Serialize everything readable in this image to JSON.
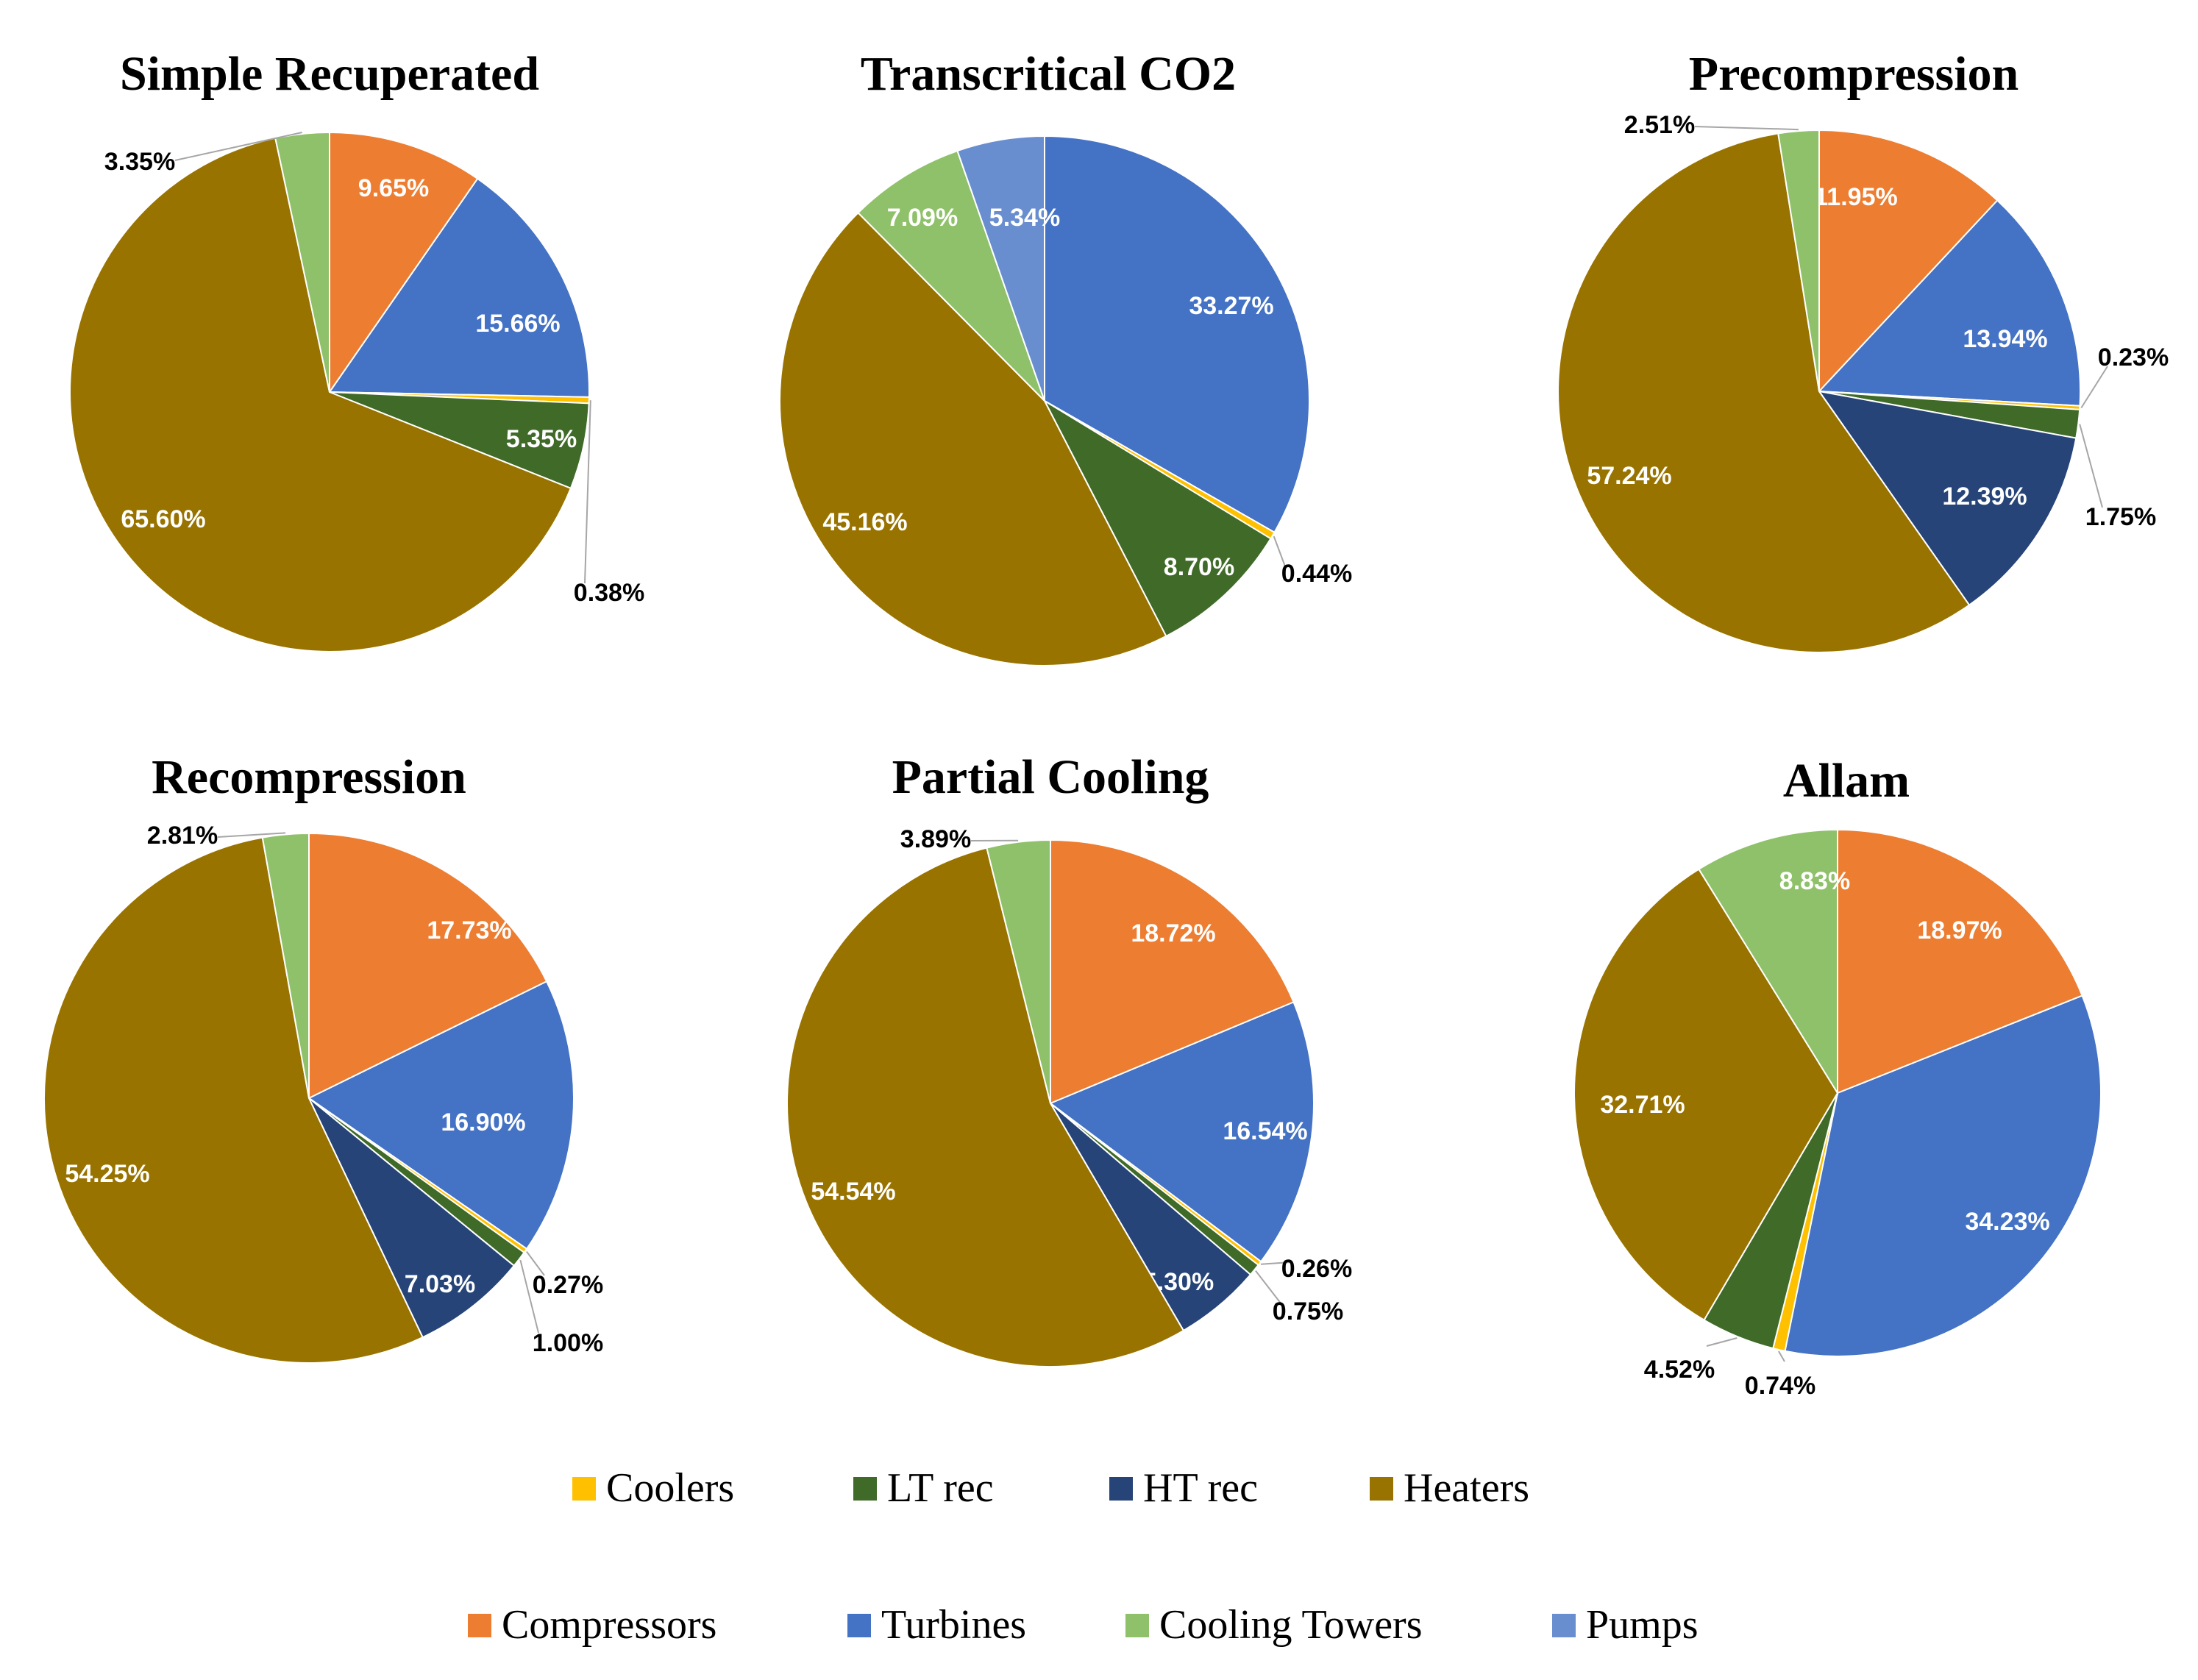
{
  "categories": [
    "Coolers",
    "LT rec",
    "HT rec",
    "Heaters",
    "Compressors",
    "Turbines",
    "Cooling Towers",
    "Pumps"
  ],
  "colors": {
    "Coolers": "#FFC000",
    "LT rec": "#3F6A28",
    "HT rec": "#264478",
    "Heaters": "#997300",
    "Compressors": "#ED7D31",
    "Turbines": "#4472C4",
    "Cooling Towers": "#8FC16A",
    "Pumps": "#698ED0"
  },
  "legend": {
    "row1": [
      "Coolers",
      "LT rec",
      "HT rec",
      "Heaters"
    ],
    "row2": [
      "Compressors",
      "Turbines",
      "Cooling Towers",
      "Pumps"
    ]
  },
  "chart_data": [
    {
      "type": "pie",
      "title": "Simple Recuperated",
      "slices": [
        {
          "name": "Compressors",
          "value": 9.65,
          "label": "9.65%"
        },
        {
          "name": "Turbines",
          "value": 15.66,
          "label": "15.66%"
        },
        {
          "name": "Coolers",
          "value": 0.38,
          "label": "0.38%"
        },
        {
          "name": "LT rec",
          "value": 5.35,
          "label": "5.35%"
        },
        {
          "name": "Heaters",
          "value": 65.6,
          "label": "65.60%"
        },
        {
          "name": "Cooling Towers",
          "value": 3.35,
          "label": "3.35%"
        }
      ]
    },
    {
      "type": "pie",
      "title": "Transcritical CO2",
      "slices": [
        {
          "name": "Turbines",
          "value": 33.27,
          "label": "33.27%"
        },
        {
          "name": "Coolers",
          "value": 0.44,
          "label": "0.44%"
        },
        {
          "name": "LT rec",
          "value": 8.7,
          "label": "8.70%"
        },
        {
          "name": "Heaters",
          "value": 45.16,
          "label": "45.16%"
        },
        {
          "name": "Cooling Towers",
          "value": 7.09,
          "label": "7.09%"
        },
        {
          "name": "Pumps",
          "value": 5.34,
          "label": "5.34%"
        }
      ]
    },
    {
      "type": "pie",
      "title": "Precompression",
      "slices": [
        {
          "name": "Compressors",
          "value": 11.95,
          "label": "11.95%"
        },
        {
          "name": "Turbines",
          "value": 13.94,
          "label": "13.94%"
        },
        {
          "name": "Coolers",
          "value": 0.23,
          "label": "0.23%"
        },
        {
          "name": "LT rec",
          "value": 1.75,
          "label": "1.75%"
        },
        {
          "name": "HT rec",
          "value": 12.39,
          "label": "12.39%"
        },
        {
          "name": "Heaters",
          "value": 57.24,
          "label": "57.24%"
        },
        {
          "name": "Cooling Towers",
          "value": 2.51,
          "label": "2.51%"
        }
      ]
    },
    {
      "type": "pie",
      "title": "Recompression",
      "slices": [
        {
          "name": "Compressors",
          "value": 17.73,
          "label": "17.73%"
        },
        {
          "name": "Turbines",
          "value": 16.9,
          "label": "16.90%"
        },
        {
          "name": "Coolers",
          "value": 0.27,
          "label": "0.27%"
        },
        {
          "name": "LT rec",
          "value": 1.0,
          "label": "1.00%"
        },
        {
          "name": "HT rec",
          "value": 7.03,
          "label": "7.03%"
        },
        {
          "name": "Heaters",
          "value": 54.25,
          "label": "54.25%"
        },
        {
          "name": "Cooling Towers",
          "value": 2.81,
          "label": "2.81%"
        }
      ]
    },
    {
      "type": "pie",
      "title": "Partial Cooling",
      "slices": [
        {
          "name": "Compressors",
          "value": 18.72,
          "label": "18.72%"
        },
        {
          "name": "Turbines",
          "value": 16.54,
          "label": "16.54%"
        },
        {
          "name": "Coolers",
          "value": 0.26,
          "label": "0.26%"
        },
        {
          "name": "LT rec",
          "value": 0.75,
          "label": "0.75%"
        },
        {
          "name": "HT rec",
          "value": 5.3,
          "label": "5.30%"
        },
        {
          "name": "Heaters",
          "value": 54.54,
          "label": "54.54%"
        },
        {
          "name": "Cooling Towers",
          "value": 3.89,
          "label": "3.89%"
        }
      ]
    },
    {
      "type": "pie",
      "title": "Allam",
      "slices": [
        {
          "name": "Compressors",
          "value": 18.97,
          "label": "18.97%"
        },
        {
          "name": "Turbines",
          "value": 34.23,
          "label": "34.23%"
        },
        {
          "name": "Coolers",
          "value": 0.74,
          "label": "0.74%"
        },
        {
          "name": "LT rec",
          "value": 4.52,
          "label": "4.52%"
        },
        {
          "name": "Heaters",
          "value": 32.71,
          "label": "32.71%"
        },
        {
          "name": "Cooling Towers",
          "value": 8.83,
          "label": "8.83%"
        }
      ]
    }
  ]
}
